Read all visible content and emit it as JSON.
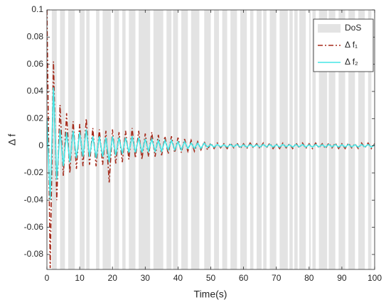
{
  "chart_data": {
    "type": "line",
    "xlabel": "Time(s)",
    "ylabel": "Δ f",
    "xlim": [
      0,
      100
    ],
    "ylim": [
      -0.091,
      0.1
    ],
    "xticks": [
      0,
      10,
      20,
      30,
      40,
      50,
      60,
      70,
      80,
      90,
      100
    ],
    "yticks": [
      -0.08,
      -0.06,
      -0.04,
      -0.02,
      0,
      0.02,
      0.04,
      0.06,
      0.08,
      0.1
    ],
    "legend": "northeast",
    "dos": {
      "name": "DoS",
      "color": "#e3e3e3",
      "intervals": [
        [
          1.5,
          3
        ],
        [
          4,
          5.5
        ],
        [
          6.5,
          8.5
        ],
        [
          10,
          11.5
        ],
        [
          12,
          13
        ],
        [
          15,
          16
        ],
        [
          17,
          19.5
        ],
        [
          20.5,
          22
        ],
        [
          23,
          24
        ],
        [
          25,
          27
        ],
        [
          28,
          31.5
        ],
        [
          32.5,
          35.5
        ],
        [
          36.5,
          38
        ],
        [
          38.5,
          40
        ],
        [
          41,
          43
        ],
        [
          44,
          46.5
        ],
        [
          48,
          50
        ],
        [
          51,
          52.5
        ],
        [
          53.5,
          55
        ],
        [
          56,
          58
        ],
        [
          59,
          61
        ],
        [
          62,
          63
        ],
        [
          64,
          65.5
        ],
        [
          66,
          67
        ],
        [
          68,
          70
        ],
        [
          71,
          73.5
        ],
        [
          74,
          75
        ],
        [
          75.5,
          76.5
        ],
        [
          77,
          79
        ],
        [
          80,
          80.5
        ],
        [
          81,
          82
        ],
        [
          83,
          85.5
        ],
        [
          86,
          88
        ],
        [
          89,
          91
        ],
        [
          92,
          94
        ],
        [
          95,
          97
        ],
        [
          98,
          99
        ]
      ]
    },
    "x": [
      0,
      1,
      2,
      3,
      4,
      5,
      6,
      7,
      8,
      9,
      10,
      11,
      12,
      13,
      14,
      15,
      16,
      17,
      18,
      19,
      20,
      21,
      22,
      23,
      24,
      25,
      26,
      27,
      28,
      29,
      30,
      31,
      32,
      33,
      34,
      35,
      36,
      37,
      38,
      39,
      40,
      41,
      42,
      43,
      44,
      45,
      46,
      47,
      48,
      49,
      50,
      51,
      52,
      53,
      54,
      55,
      56,
      57,
      58,
      59,
      60,
      61,
      62,
      63,
      64,
      65,
      66,
      67,
      68,
      69,
      70,
      71,
      72,
      73,
      74,
      75,
      76,
      77,
      78,
      79,
      80,
      81,
      82,
      83,
      84,
      85,
      86,
      87,
      88,
      89,
      90,
      91,
      92,
      93,
      94,
      95,
      96,
      97,
      98,
      99,
      100
    ],
    "series": [
      {
        "name": "Δ f₁",
        "color": "#a52a1a",
        "line_style": "dash-dot",
        "values": [
          0.1,
          -0.09,
          0.062,
          -0.04,
          0.03,
          -0.022,
          0.024,
          -0.02,
          0.018,
          -0.017,
          0.016,
          -0.015,
          0.02,
          -0.014,
          0.013,
          -0.015,
          0.012,
          -0.014,
          0.011,
          -0.027,
          0.012,
          -0.013,
          0.01,
          -0.012,
          0.011,
          -0.01,
          0.013,
          -0.009,
          0.011,
          -0.01,
          0.009,
          -0.008,
          0.01,
          -0.008,
          0.008,
          -0.007,
          0.007,
          -0.006,
          0.007,
          -0.005,
          0.006,
          -0.005,
          0.005,
          -0.004,
          0.004,
          -0.004,
          0.003,
          -0.003,
          0.003,
          -0.003,
          0.002,
          -0.002,
          0.002,
          -0.0015,
          0.0015,
          -0.002,
          0.002,
          -0.0015,
          0.002,
          -0.002,
          0.0015,
          -0.002,
          0.002,
          -0.0015,
          0.0015,
          -0.002,
          0.002,
          -0.0015,
          0.002,
          -0.002,
          0.0015,
          -0.002,
          0.002,
          -0.0015,
          0.0015,
          -0.002,
          0.002,
          -0.0015,
          0.002,
          -0.002,
          0.0015,
          -0.002,
          0.002,
          -0.0015,
          0.0015,
          -0.002,
          0.002,
          -0.0015,
          0.002,
          -0.002,
          0.0015,
          -0.002,
          0.002,
          -0.0015,
          0.0015,
          -0.002,
          0.002,
          -0.0015,
          0.002,
          -0.002,
          0.0015
        ]
      },
      {
        "name": "Δ f₂",
        "color": "#45e5e5",
        "line_style": "solid",
        "values": [
          0.02,
          -0.04,
          0.043,
          -0.025,
          0.012,
          -0.015,
          0.01,
          -0.012,
          0.011,
          -0.009,
          0.01,
          -0.008,
          0.012,
          -0.008,
          0.007,
          -0.009,
          0.007,
          -0.008,
          0.006,
          -0.012,
          0.007,
          -0.007,
          0.006,
          -0.006,
          0.006,
          -0.005,
          0.007,
          -0.005,
          0.006,
          -0.005,
          0.005,
          -0.004,
          0.005,
          -0.004,
          0.004,
          -0.004,
          0.004,
          -0.003,
          0.004,
          -0.003,
          0.003,
          -0.003,
          0.003,
          -0.002,
          0.002,
          -0.002,
          0.002,
          -0.002,
          0.002,
          -0.001,
          0.001,
          -0.001,
          0.001,
          -0.0008,
          0.0008,
          -0.001,
          0.001,
          -0.0008,
          0.001,
          -0.001,
          0.0008,
          -0.001,
          0.001,
          -0.0008,
          0.0008,
          -0.001,
          0.001,
          -0.0008,
          0.001,
          -0.001,
          0.0008,
          -0.001,
          0.001,
          -0.0008,
          0.0008,
          -0.001,
          0.001,
          -0.0008,
          0.001,
          -0.001,
          0.0008,
          -0.001,
          0.001,
          -0.0008,
          0.0008,
          -0.001,
          0.001,
          -0.0008,
          0.001,
          -0.001,
          0.0008,
          -0.001,
          0.001,
          -0.0008,
          0.0008,
          -0.001,
          0.001,
          -0.0008,
          0.001,
          -0.001,
          0.0008
        ]
      }
    ]
  }
}
